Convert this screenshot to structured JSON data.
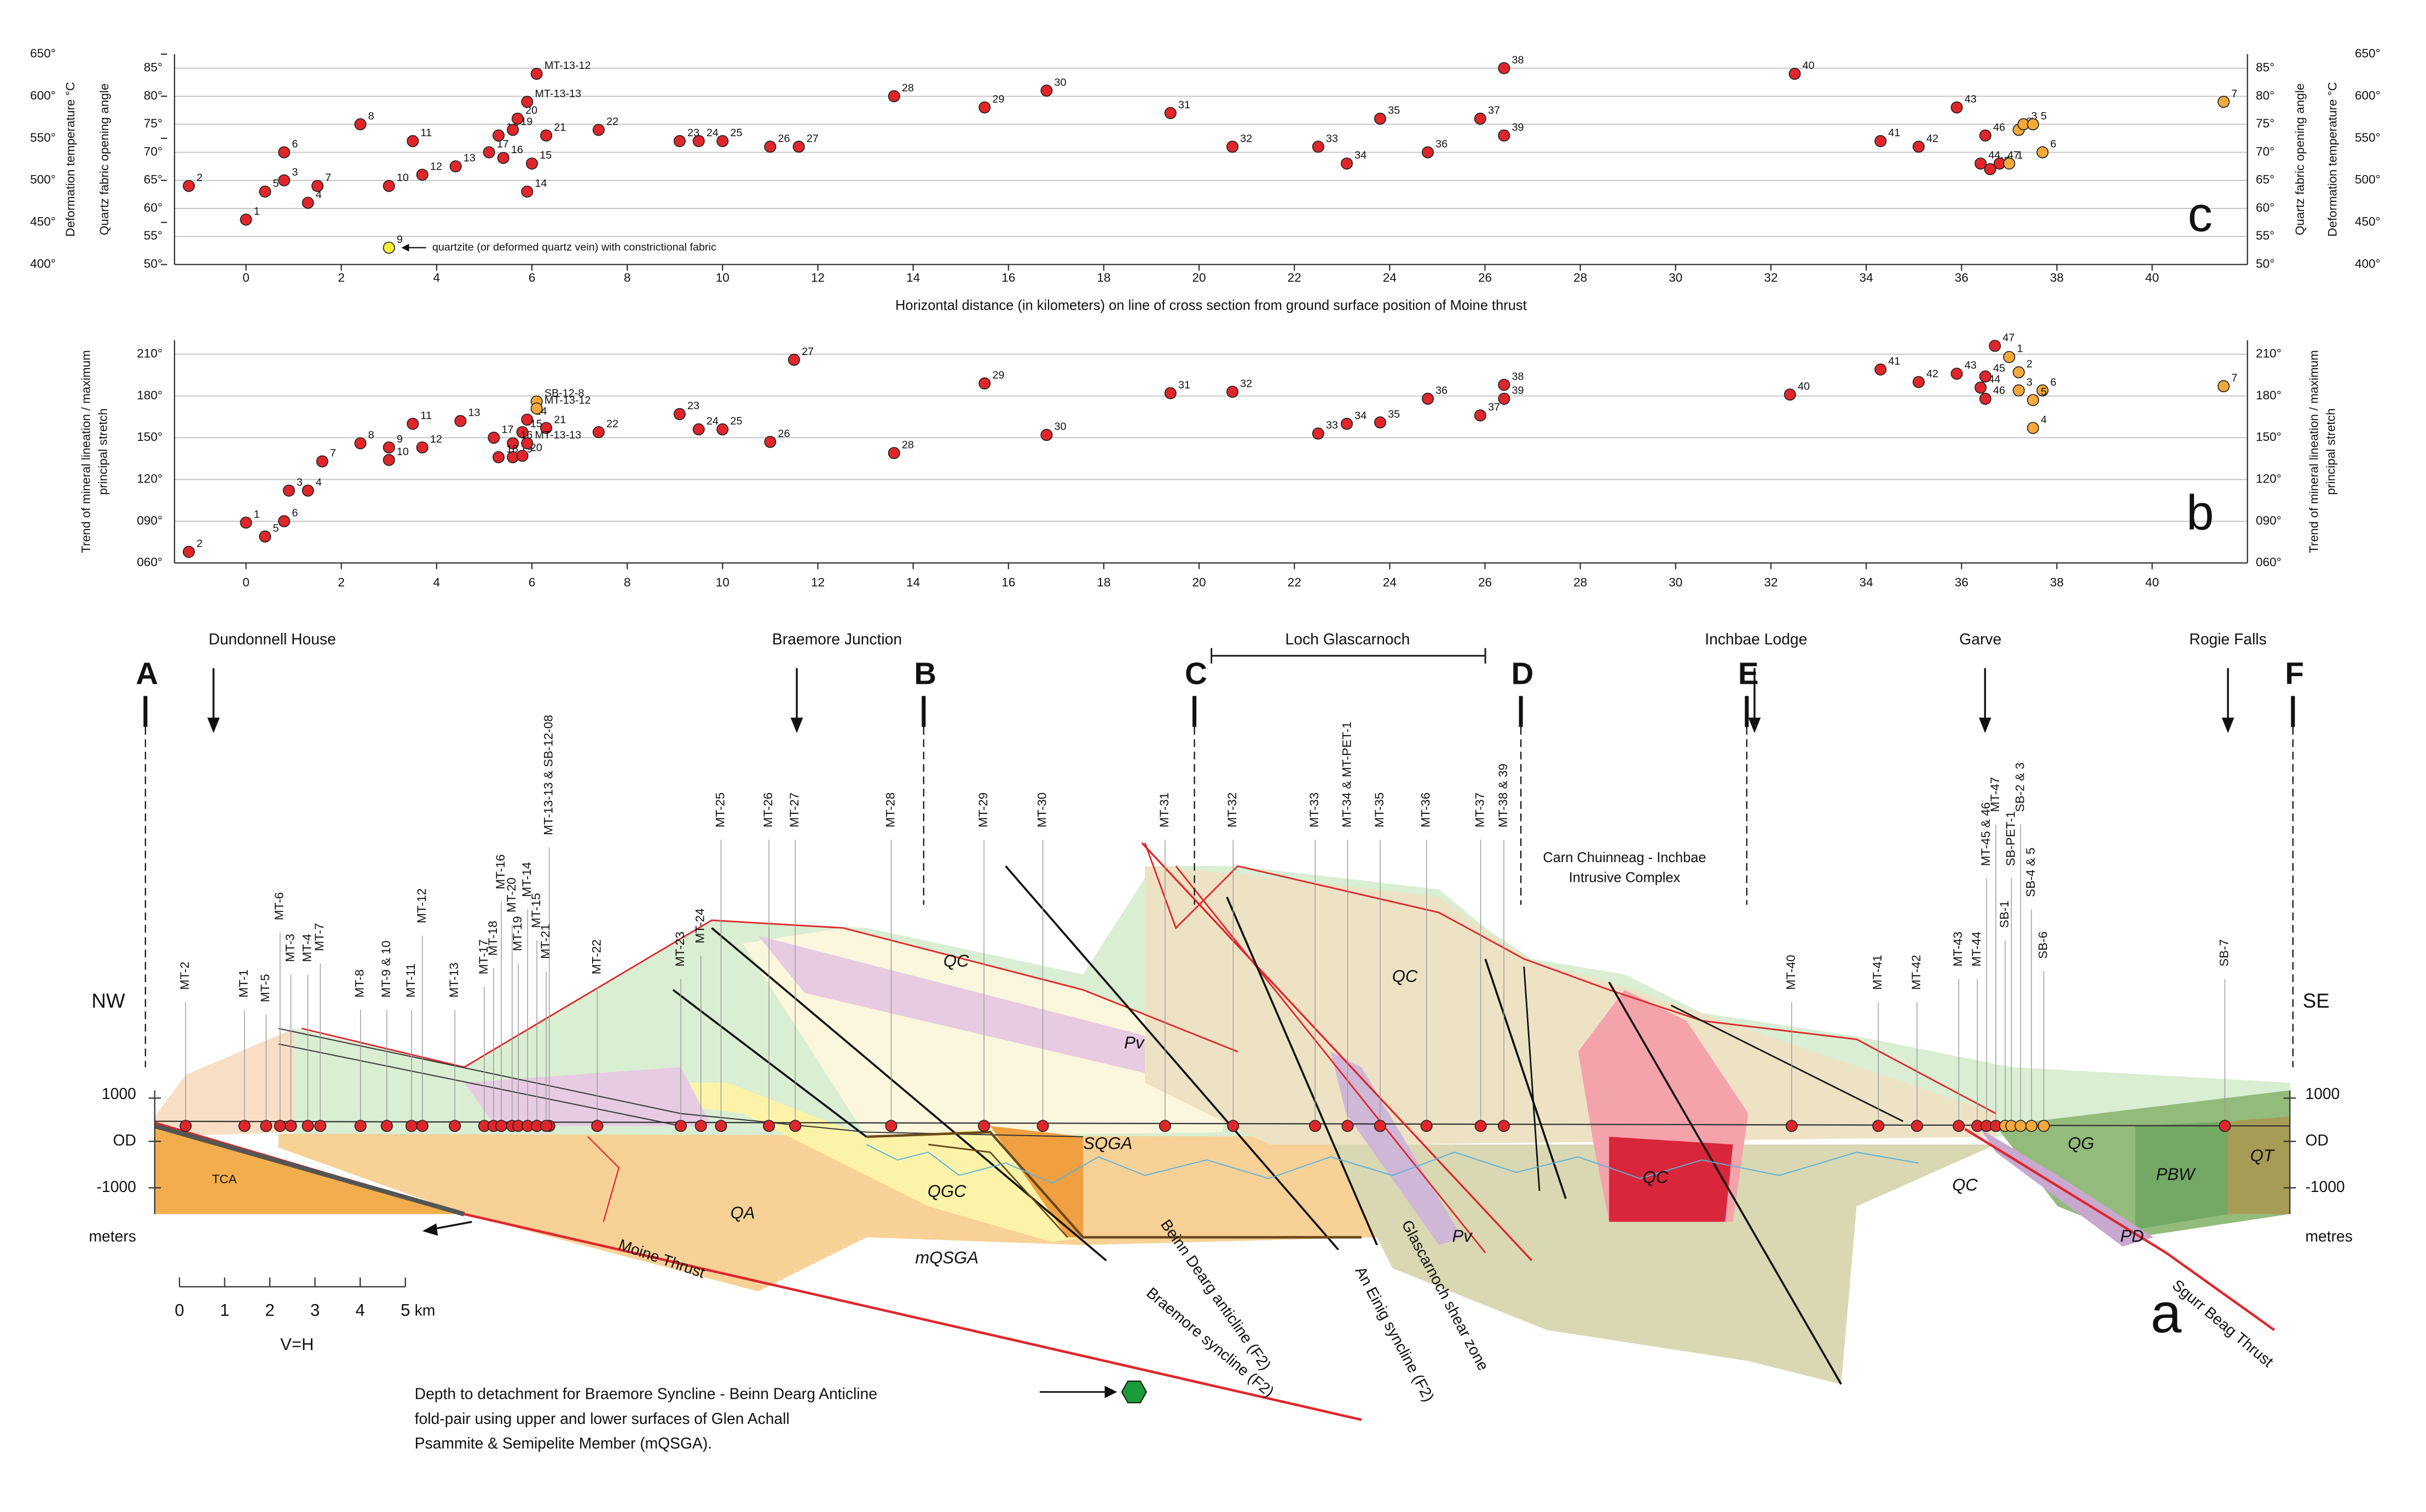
{
  "chart_data": [
    {
      "type": "scatter",
      "panel": "c",
      "xlabel": "Horizontal distance (in kilometers) on line of cross section from ground surface position of Moine thrust",
      "ylabel": "Quartz fabric opening angle",
      "y2label": "Deformation temperature °C",
      "xlim": [
        -1.5,
        42
      ],
      "xticks": [
        0,
        2,
        4,
        6,
        8,
        10,
        12,
        14,
        16,
        18,
        20,
        22,
        24,
        26,
        28,
        30,
        32,
        34,
        36,
        38,
        40
      ],
      "ylim": [
        50,
        87.5
      ],
      "yticks": [
        {
          "value": 50,
          "label": "50°"
        },
        {
          "value": 55,
          "label": "55°"
        },
        {
          "value": 60,
          "label": "60°"
        },
        {
          "value": 65,
          "label": "65°"
        },
        {
          "value": 70,
          "label": "70°"
        },
        {
          "value": 75,
          "label": "75°"
        },
        {
          "value": 80,
          "label": "80°"
        },
        {
          "value": 85,
          "label": "85°"
        }
      ],
      "y2lim": [
        400,
        650
      ],
      "y2ticks": [
        {
          "value": 400,
          "label": "400°"
        },
        {
          "value": 450,
          "label": "450°"
        },
        {
          "value": 500,
          "label": "500°"
        },
        {
          "value": 550,
          "label": "550°"
        },
        {
          "value": 600,
          "label": "600°"
        },
        {
          "value": 650,
          "label": "650°"
        }
      ],
      "grid": true,
      "series": [
        {
          "color": "#e0262b",
          "x": [
            0.0,
            -1.2,
            0.8,
            1.3,
            0.4,
            0.8,
            1.5,
            2.4,
            3.0,
            3.5,
            3.7,
            4.4,
            5.9,
            6.0,
            5.4,
            5.1,
            5.3,
            5.6,
            5.7,
            6.3,
            7.4,
            9.1,
            9.5,
            10.0,
            11.0,
            11.6,
            13.6,
            15.5,
            16.8,
            19.4,
            20.7,
            22.5,
            23.1,
            23.8,
            24.8,
            25.9,
            26.4,
            26.4,
            32.5,
            34.3,
            35.1,
            35.9,
            36.4,
            36.6,
            36.5,
            36.8,
            5.9,
            6.1
          ],
          "values": [
            58,
            64,
            65,
            61,
            63,
            70,
            64,
            75,
            64,
            72,
            66,
            67.5,
            63,
            68,
            69,
            70,
            73,
            74,
            76,
            73,
            74,
            72,
            72,
            72,
            71,
            71,
            80,
            78,
            81,
            77,
            71,
            71,
            68,
            76,
            70,
            76,
            85,
            73,
            84,
            72,
            71,
            78,
            68,
            67,
            73,
            68,
            79,
            84
          ],
          "point_labels": [
            "1",
            "2",
            "3",
            "4",
            "5",
            "6",
            "7",
            "8",
            "10",
            "11",
            "12",
            "13",
            "14",
            "15",
            "16",
            "17",
            "18",
            "19",
            "20",
            "21",
            "22",
            "23",
            "24",
            "25",
            "26",
            "27",
            "28",
            "29",
            "30",
            "31",
            "32",
            "33",
            "34",
            "35",
            "36",
            "37",
            "38",
            "39",
            "40",
            "41",
            "42",
            "43",
            "44",
            "45",
            "46",
            "47",
            "MT-13-13",
            "MT-13-12"
          ]
        },
        {
          "color": "#f4a93a",
          "x": [
            37.0,
            37.2,
            37.3,
            37.5,
            37.7,
            41.5
          ],
          "values": [
            68,
            74,
            75,
            75,
            70,
            79
          ],
          "point_labels": [
            "1",
            "2",
            "3",
            "5",
            "6",
            "7"
          ]
        },
        {
          "color": "#f6ee3a",
          "x": [
            3.0
          ],
          "values": [
            53
          ],
          "point_labels": [
            "9"
          ]
        }
      ],
      "annotation": "quartzite (or deformed quartz vein) with constrictional fabric"
    },
    {
      "type": "scatter",
      "panel": "b",
      "ylabel": [
        "Trend of mineral lineation / maximum",
        "principal stretch"
      ],
      "xlim": [
        -1.5,
        42
      ],
      "xticks": [
        0,
        2,
        4,
        6,
        8,
        10,
        12,
        14,
        16,
        18,
        20,
        22,
        24,
        26,
        28,
        30,
        32,
        34,
        36,
        38,
        40
      ],
      "ylim": [
        60,
        220
      ],
      "yticks": [
        {
          "value": 60,
          "label": "060°"
        },
        {
          "value": 90,
          "label": "090°"
        },
        {
          "value": 120,
          "label": "120°"
        },
        {
          "value": 150,
          "label": "150°"
        },
        {
          "value": 180,
          "label": "180°"
        },
        {
          "value": 210,
          "label": "210°"
        }
      ],
      "grid": true,
      "series": [
        {
          "color": "#e0262b",
          "x": [
            0.0,
            -1.2,
            0.9,
            1.3,
            0.4,
            0.8,
            1.6,
            2.4,
            3.0,
            3.0,
            3.5,
            3.7,
            4.5,
            5.9,
            5.8,
            5.6,
            5.2,
            5.3,
            5.6,
            5.8,
            6.3,
            7.4,
            9.1,
            9.5,
            10.0,
            11.0,
            11.5,
            13.6,
            15.5,
            16.8,
            19.4,
            20.7,
            22.5,
            23.1,
            23.8,
            24.8,
            25.9,
            26.4,
            26.4,
            32.4,
            34.3,
            35.1,
            35.9,
            36.4,
            36.5,
            36.5,
            36.7,
            5.9
          ],
          "values": [
            89,
            68,
            112,
            112,
            79,
            90,
            133,
            146,
            143,
            134,
            160,
            143,
            162,
            163,
            154,
            146,
            150,
            136,
            136,
            137,
            157,
            154,
            167,
            156,
            156,
            147,
            206,
            139,
            189,
            152,
            182,
            183,
            153,
            160,
            161,
            178,
            166,
            188,
            178,
            181,
            199,
            190,
            196,
            186,
            194,
            178,
            216,
            146
          ],
          "point_labels": [
            "1",
            "2",
            "3",
            "4",
            "5",
            "6",
            "7",
            "8",
            "9",
            "10",
            "11",
            "12",
            "13",
            "14",
            "15",
            "16",
            "17",
            "18",
            "19",
            "20",
            "21",
            "22",
            "23",
            "24",
            "25",
            "26",
            "27",
            "28",
            "29",
            "30",
            "31",
            "32",
            "33",
            "34",
            "35",
            "36",
            "37",
            "38",
            "39",
            "40",
            "41",
            "42",
            "43",
            "44",
            "45",
            "46",
            "47",
            "MT-13-13"
          ]
        },
        {
          "color": "#f4a93a",
          "x": [
            37.0,
            37.2,
            37.2,
            37.7,
            37.5,
            37.5,
            41.5,
            6.1,
            6.1
          ],
          "values": [
            208,
            197,
            184,
            184,
            177,
            157,
            187,
            176,
            171
          ],
          "point_labels": [
            "1",
            "2",
            "3",
            "6",
            "5",
            "4",
            "7",
            "SB-12-8",
            "MT-13-12"
          ]
        }
      ]
    }
  ],
  "cross_section": {
    "panel": "a",
    "locations": [
      "Dundonnell House",
      "Braemore Junction",
      "Loch Glascarnoch",
      "Inchbae Lodge",
      "Garve",
      "Rogie Falls"
    ],
    "section_letters": [
      "A",
      "B",
      "C",
      "D",
      "E",
      "F"
    ],
    "orientation": [
      "NW",
      "SE"
    ],
    "elevation_left": [
      "1000",
      "OD",
      "-1000",
      "meters"
    ],
    "elevation_right": [
      "1000",
      "OD",
      "-1000",
      "metres"
    ],
    "boreholes": [
      "MT-2",
      "MT-1",
      "MT-5",
      "MT-6",
      "MT-3",
      "MT-4",
      "MT-7",
      "MT-8",
      "MT-9 & 10",
      "MT-11",
      "MT-12",
      "MT-13",
      "MT-17",
      "MT-18",
      "MT-16",
      "MT-20",
      "MT-19",
      "MT-14",
      "MT-15",
      "MT-13-13 & SB-12-08",
      "MT-21",
      "MT-22",
      "MT-23",
      "MT-24",
      "MT-25",
      "MT-26",
      "MT-27",
      "MT-28",
      "MT-29",
      "MT-30",
      "MT-31",
      "MT-32",
      "MT-33",
      "MT-34 & MT-PET-1",
      "MT-35",
      "MT-36",
      "MT-37",
      "MT-38 & 39",
      "MT-40",
      "MT-41",
      "MT-42",
      "MT-43",
      "MT-44",
      "MT-45 & 46",
      "MT-47",
      "SB-1",
      "SB-PET-1",
      "SB-2 & 3",
      "SB-4 & 5",
      "SB-6",
      "SB-7"
    ],
    "units": [
      "TCA",
      "QA",
      "QGC",
      "SQGA",
      "mQSGA",
      "QC",
      "Pv",
      "QC",
      "QC",
      "QC",
      "QG",
      "PBW",
      "QT",
      "PD",
      "Pv"
    ],
    "structures": [
      "Moine Thrust",
      "Beinn Dearg anticline (F2)",
      "Braemore syncline (F2)",
      "An Einig syncline (F2)",
      "Glascarnoch shear zone",
      "Sgurr Beag Thrust"
    ],
    "intrusive_complex": [
      "Carn Chuinneag - Inchbae",
      "Intrusive Complex"
    ],
    "scale_bar": {
      "labels": [
        "0",
        "1",
        "2",
        "3",
        "4",
        "5"
      ],
      "unit": "km",
      "ratio": "V=H"
    },
    "note": [
      "Depth to detachment for Braemore Syncline - Beinn Dearg Anticline",
      "fold-pair using upper and lower surfaces of Glen Achall",
      "Psammite & Semipelite Member (mQSGA)."
    ]
  }
}
